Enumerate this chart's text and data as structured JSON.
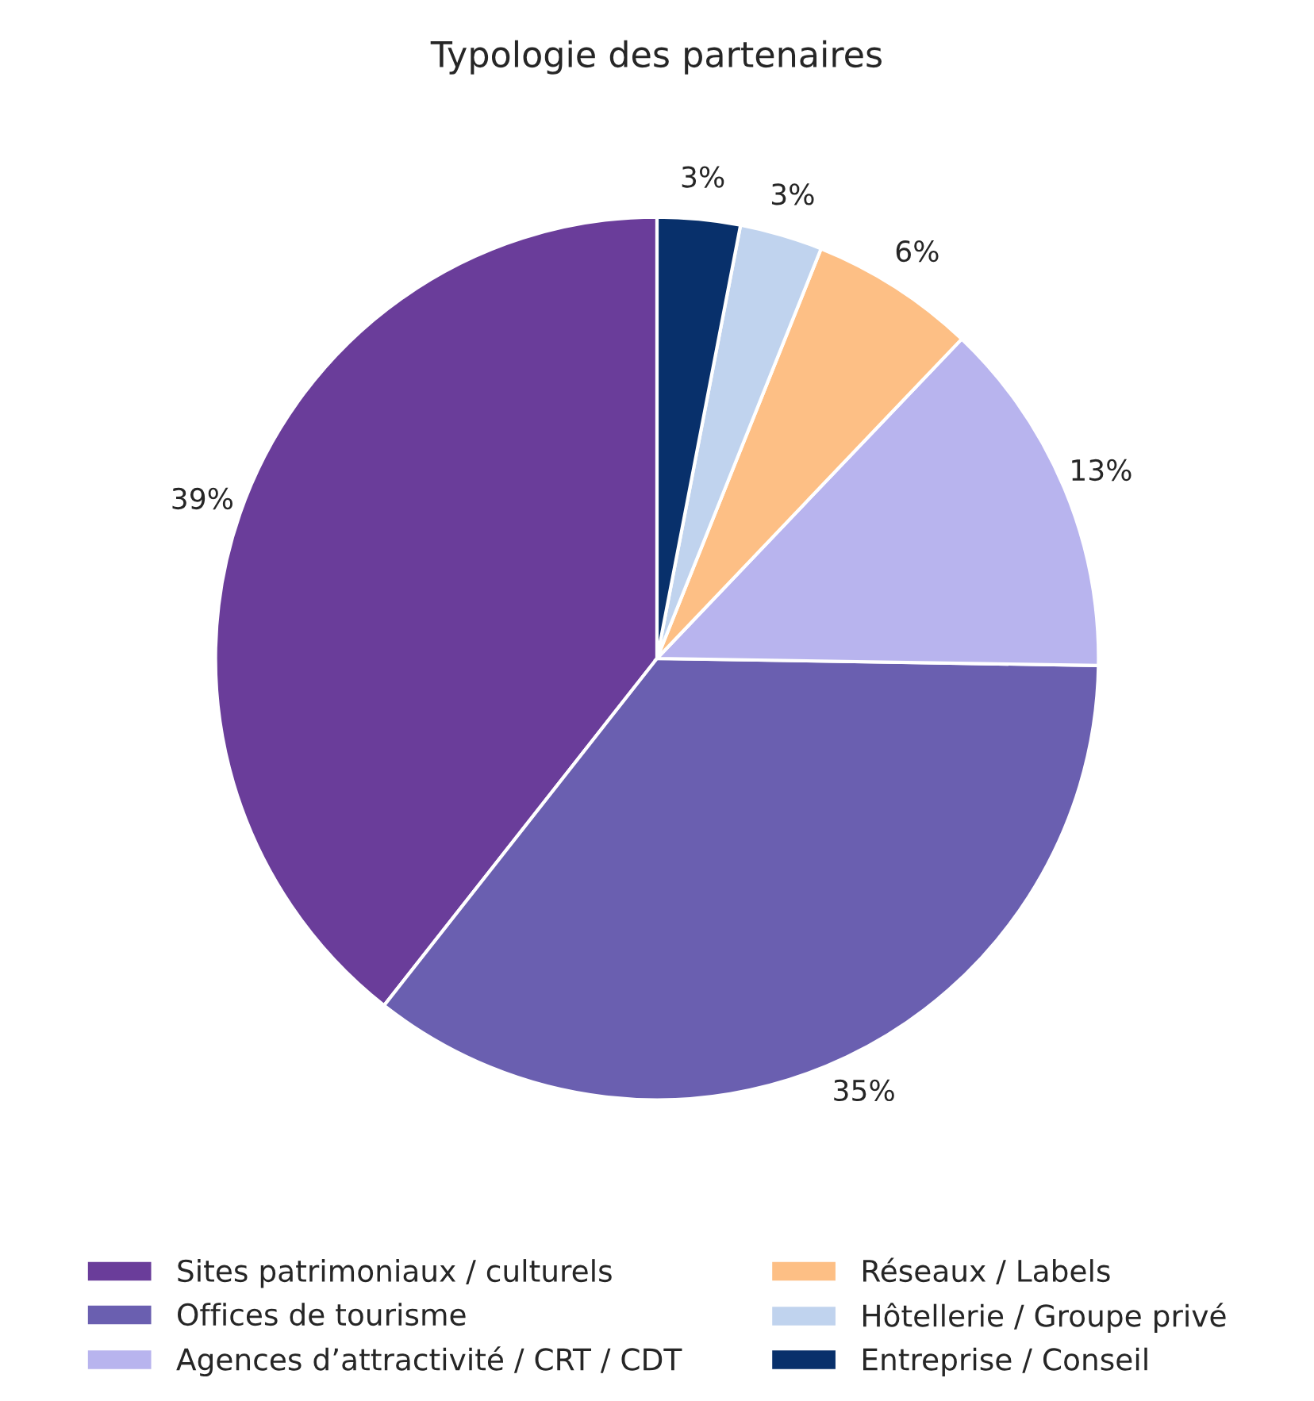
{
  "chart_data": {
    "type": "pie",
    "title": "Typologie des partenaires",
    "categories": [
      "Sites patrimoniaux / culturels",
      "Offices de tourisme",
      "Agences d’attractivité / CRT / CDT",
      "Réseaux / Labels",
      "Hôtellerie / Groupe privé",
      "Entreprise / Conseil"
    ],
    "values": [
      39,
      35,
      13,
      6,
      3,
      3
    ],
    "colors": [
      "#6a3d9a",
      "#6a5fb0",
      "#b8b4ee",
      "#fdbf85",
      "#c0d3ee",
      "#08306b"
    ],
    "value_labels": [
      "39%",
      "35%",
      "13%",
      "6%",
      "3%",
      "3%"
    ],
    "legend": "bottom"
  }
}
